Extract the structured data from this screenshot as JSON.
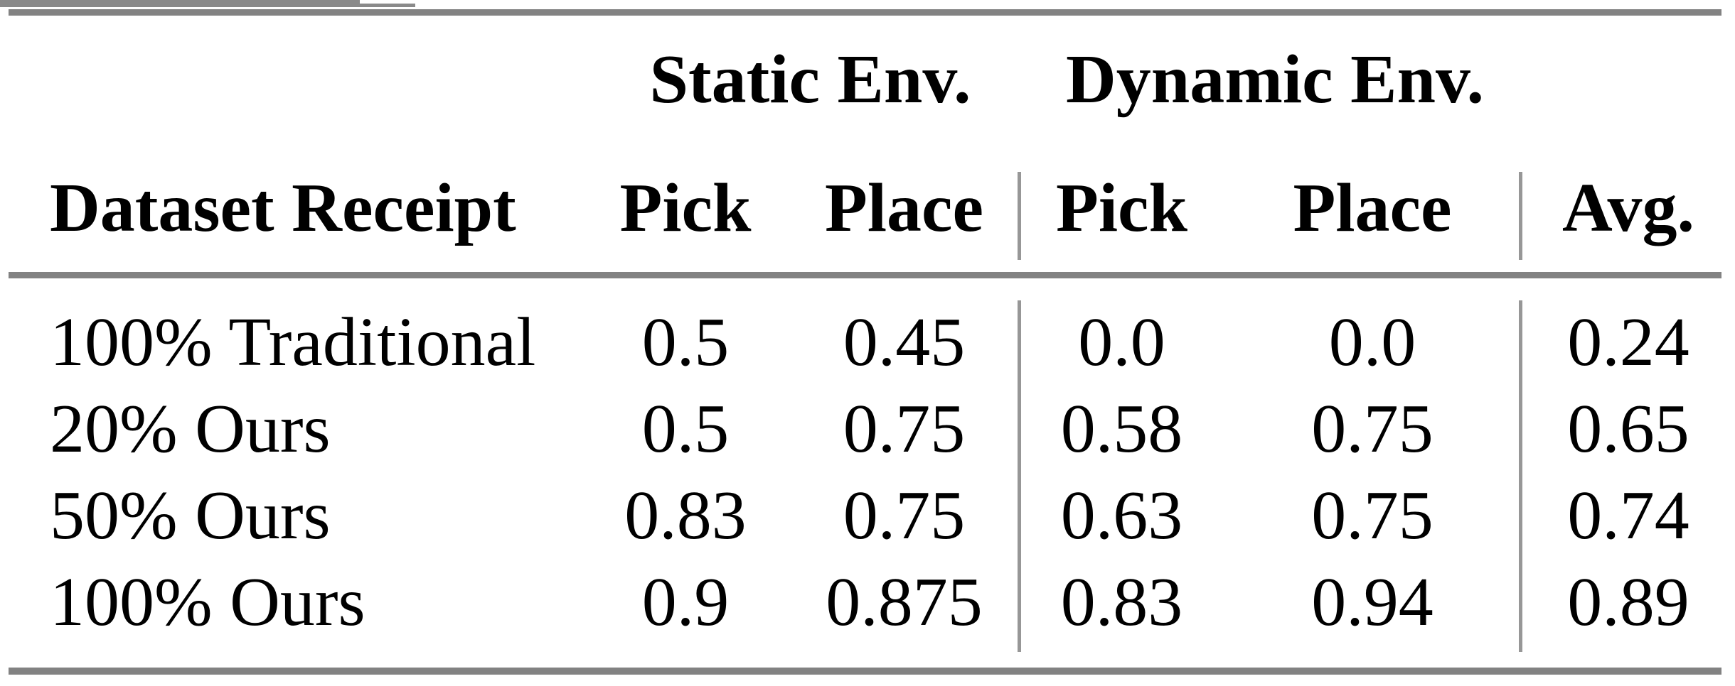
{
  "table": {
    "group_headers": [
      {
        "label": "Static Env."
      },
      {
        "label": "Dynamic Env."
      }
    ],
    "columns": {
      "row_header": "Dataset Receipt",
      "static_pick": "Pick",
      "static_place": "Place",
      "dynamic_pick": "Pick",
      "dynamic_place": "Place",
      "avg": "Avg."
    },
    "rows": [
      {
        "label": "100% Traditional",
        "values": [
          "0.5",
          "0.45",
          "0.0",
          "0.0",
          "0.24"
        ]
      },
      {
        "label": "20% Ours",
        "values": [
          "0.5",
          "0.75",
          "0.58",
          "0.75",
          "0.65"
        ]
      },
      {
        "label": "50% Ours",
        "values": [
          "0.83",
          "0.75",
          "0.63",
          "0.75",
          "0.74"
        ]
      },
      {
        "label": "100% Ours",
        "values": [
          "0.9",
          "0.875",
          "0.83",
          "0.94",
          "0.89"
        ]
      }
    ],
    "colors": {
      "rule": "#828282",
      "cmidrule": "#8a8a8a",
      "vline": "#979797",
      "text": "#000000",
      "background": "#ffffff"
    }
  }
}
